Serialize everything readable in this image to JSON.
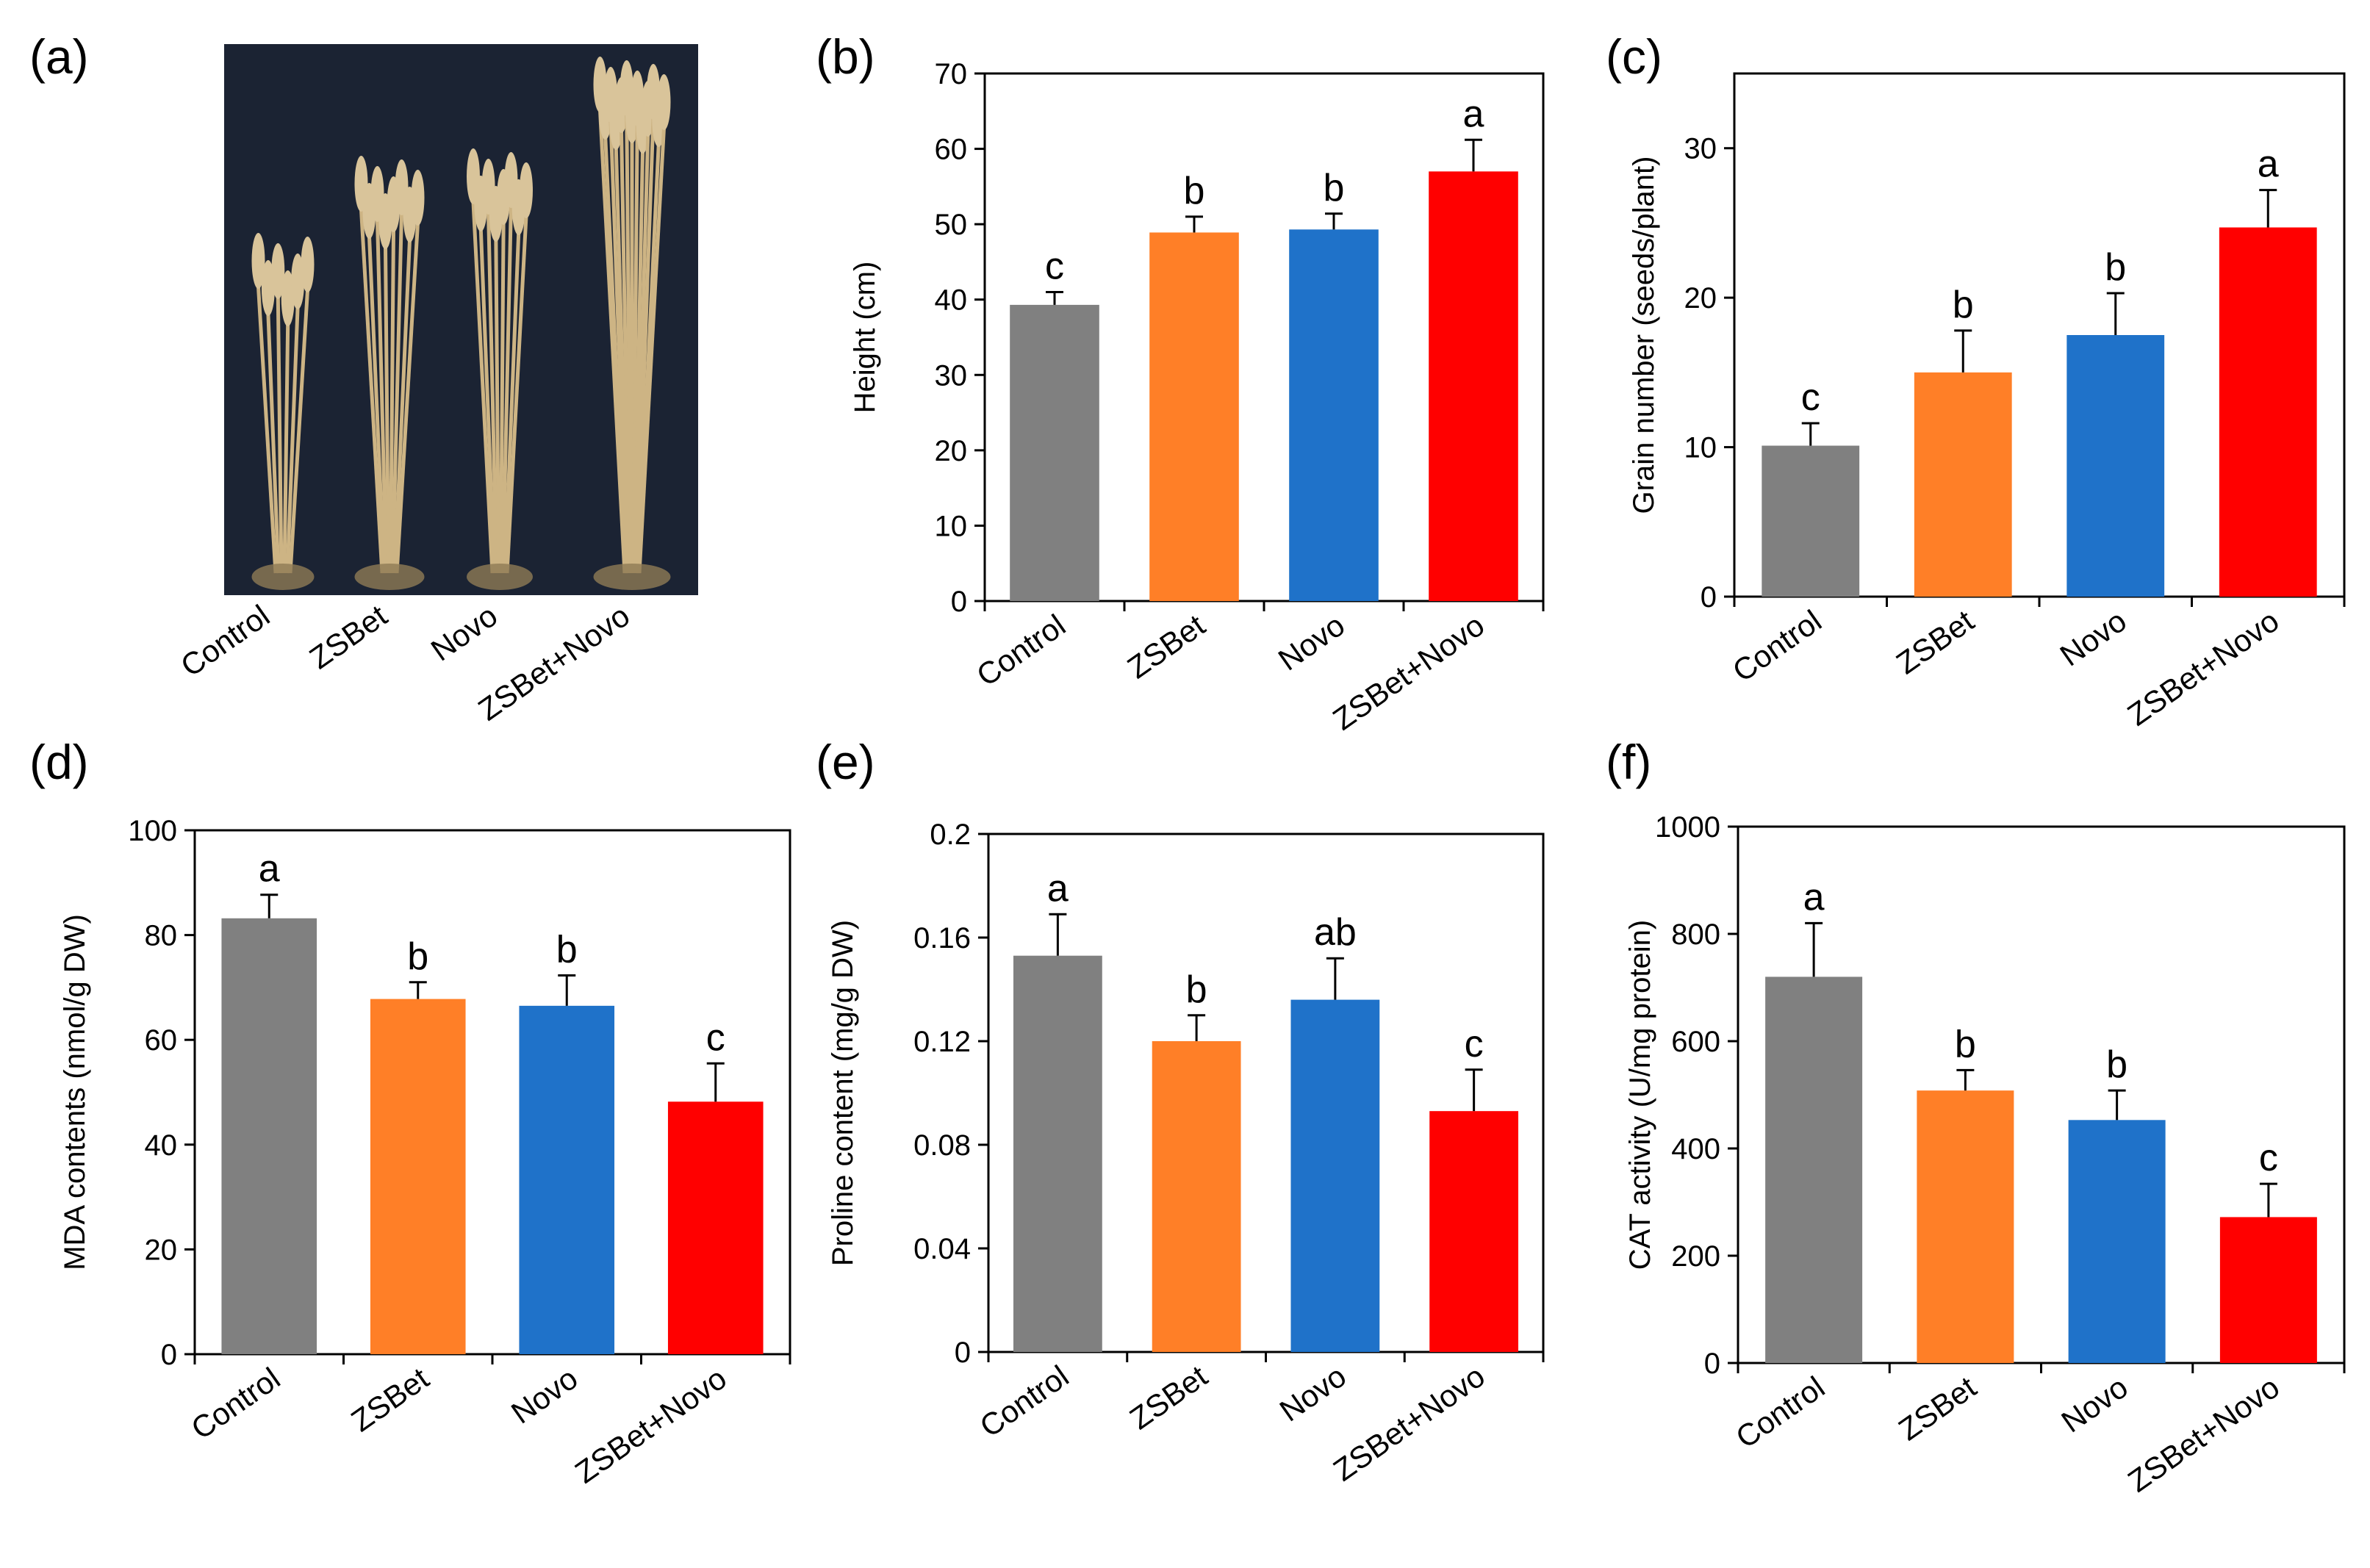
{
  "photo_panel": {
    "label": "(a)",
    "categories": [
      "Control",
      "ZSBet",
      "Novo",
      "ZSBet+Novo"
    ]
  },
  "colors": {
    "Control": "#808080",
    "ZSBet": "#FF7F27",
    "Novo": "#1F72C9",
    "ZSBet+Novo": "#FF0000"
  },
  "chart_data": [
    {
      "panel": "(b)",
      "type": "bar",
      "categories": [
        "Control",
        "ZSBet",
        "Novo",
        "ZSBet+Novo"
      ],
      "values": [
        39.3,
        48.9,
        49.3,
        57.0
      ],
      "errors": [
        1.7,
        2.1,
        2.1,
        4.2
      ],
      "significance": [
        "c",
        "b",
        "b",
        "a"
      ],
      "ylabel": "Height (cm)",
      "ylim": [
        0,
        70
      ],
      "yticks": [
        0,
        10,
        20,
        30,
        40,
        50,
        60,
        70
      ],
      "ytick_labels": [
        "0",
        "10",
        "20",
        "30",
        "40",
        "50",
        "60",
        "70"
      ]
    },
    {
      "panel": "(c)",
      "type": "bar",
      "categories": [
        "Control",
        "ZSBet",
        "Novo",
        "ZSBet+Novo"
      ],
      "values": [
        10.1,
        15.0,
        17.5,
        24.7
      ],
      "errors": [
        1.5,
        2.8,
        2.8,
        2.5
      ],
      "significance": [
        "c",
        "b",
        "b",
        "a"
      ],
      "ylabel": "Grain number (seeds/plant)",
      "ylim": [
        0,
        35
      ],
      "yticks": [
        0,
        10,
        20,
        30
      ],
      "ytick_labels": [
        "0",
        "10",
        "20",
        "30"
      ]
    },
    {
      "panel": "(d)",
      "type": "bar",
      "categories": [
        "Control",
        "ZSBet",
        "Novo",
        "ZSBet+Novo"
      ],
      "values": [
        83.2,
        67.8,
        66.5,
        48.2
      ],
      "errors": [
        4.5,
        3.2,
        5.8,
        7.3
      ],
      "significance": [
        "a",
        "b",
        "b",
        "c"
      ],
      "ylabel": "MDA contents (nmol/g DW)",
      "ylim": [
        0,
        100
      ],
      "yticks": [
        0,
        20,
        40,
        60,
        80,
        100
      ],
      "ytick_labels": [
        "0",
        "20",
        "40",
        "60",
        "80",
        "100"
      ]
    },
    {
      "panel": "(e)",
      "type": "bar",
      "categories": [
        "Control",
        "ZSBet",
        "Novo",
        "ZSBet+Novo"
      ],
      "values": [
        0.153,
        0.12,
        0.136,
        0.093
      ],
      "errors": [
        0.016,
        0.01,
        0.016,
        0.016
      ],
      "significance": [
        "a",
        "b",
        "ab",
        "c"
      ],
      "ylabel": "Proline content (mg/g DW)",
      "ylim": [
        0,
        0.2
      ],
      "yticks": [
        0,
        0.04,
        0.08,
        0.12,
        0.16,
        0.2
      ],
      "ytick_labels": [
        "0",
        "0.04",
        "0.08",
        "0.12",
        "0.16",
        "0.2"
      ]
    },
    {
      "panel": "(f)",
      "type": "bar",
      "categories": [
        "Control",
        "ZSBet",
        "Novo",
        "ZSBet+Novo"
      ],
      "values": [
        720,
        508,
        453,
        272
      ],
      "errors": [
        100,
        38,
        55,
        62
      ],
      "significance": [
        "a",
        "b",
        "b",
        "c"
      ],
      "ylabel": "CAT activity (U/mg protein)",
      "ylim": [
        0,
        1000
      ],
      "yticks": [
        0,
        200,
        400,
        600,
        800,
        1000
      ],
      "ytick_labels": [
        "0",
        "200",
        "400",
        "600",
        "800",
        "1000"
      ]
    }
  ]
}
